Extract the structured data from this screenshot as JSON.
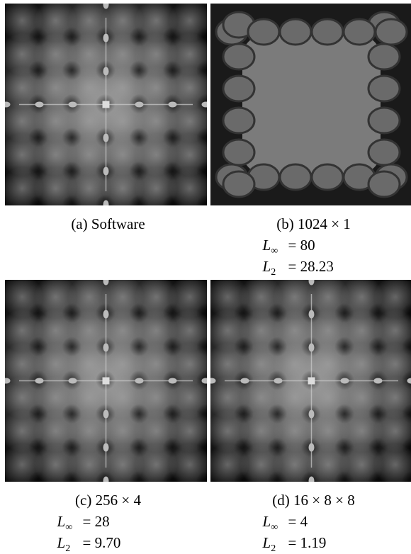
{
  "panels": [
    {
      "label": "(a)",
      "caption": "Software",
      "metrics": []
    },
    {
      "label": "(b)",
      "caption": "1024 × 1",
      "metrics": [
        {
          "symbol": "L",
          "sub": "∞",
          "sign": "=",
          "value": "80"
        },
        {
          "symbol": "L",
          "sub": "2",
          "sign": "=",
          "value": "28.23"
        }
      ]
    },
    {
      "label": "(c)",
      "caption": "256 × 4",
      "metrics": [
        {
          "symbol": "L",
          "sub": "∞",
          "sign": "=",
          "value": "28"
        },
        {
          "symbol": "L",
          "sub": "2",
          "sign": "=",
          "value": "9.70"
        }
      ]
    },
    {
      "label": "(d)",
      "caption": "16 × 8 × 8",
      "metrics": [
        {
          "symbol": "L",
          "sub": "∞",
          "sign": "=",
          "value": "4"
        },
        {
          "symbol": "L",
          "sub": "2",
          "sign": "=",
          "value": "1.19"
        }
      ]
    }
  ]
}
